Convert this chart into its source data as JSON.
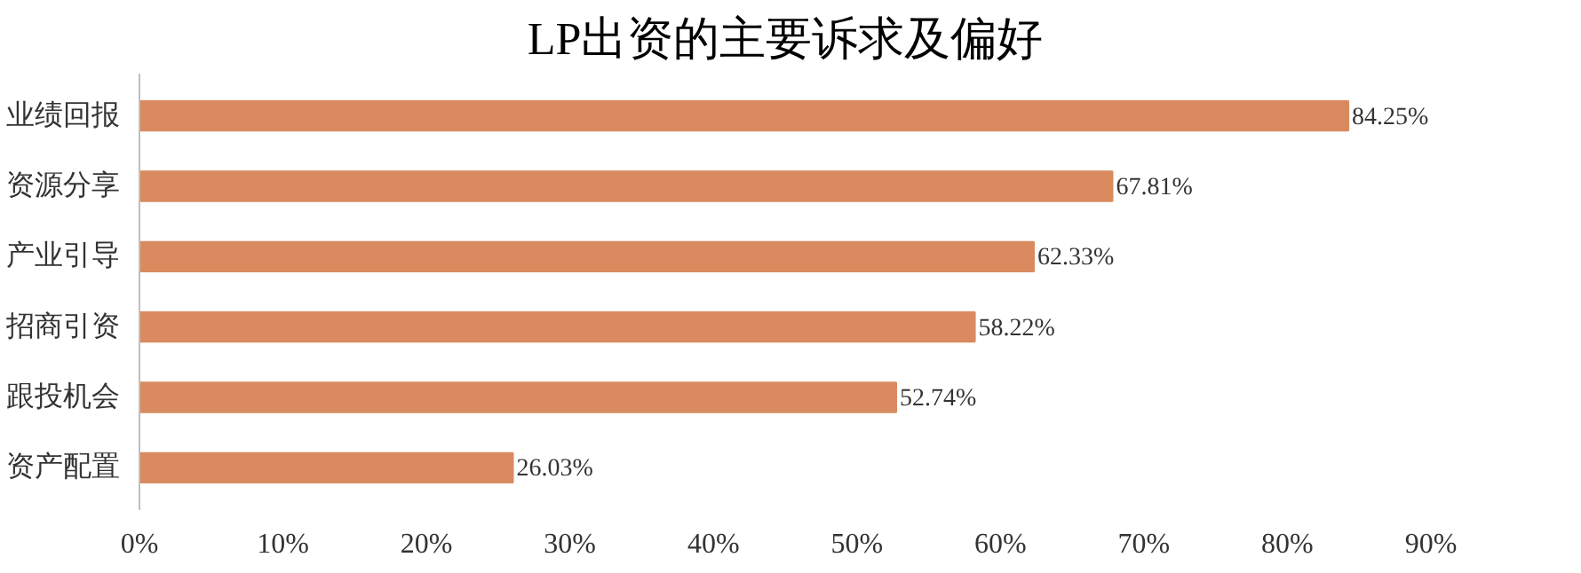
{
  "chart_data": {
    "type": "bar",
    "orientation": "horizontal",
    "title": "LP出资的主要诉求及偏好",
    "categories": [
      "业绩回报",
      "资源分享",
      "产业引导",
      "招商引资",
      "跟投机会",
      "资产配置"
    ],
    "values": [
      84.25,
      67.81,
      62.33,
      58.22,
      52.74,
      26.03
    ],
    "value_labels": [
      "84.25%",
      "67.81%",
      "62.33%",
      "58.22%",
      "52.74%",
      "26.03%"
    ],
    "color": "#d98b5f",
    "xlim": [
      0,
      90
    ],
    "xticks": [
      {
        "value": 0,
        "label": "0%"
      },
      {
        "value": 10,
        "label": "10%"
      },
      {
        "value": 20,
        "label": "20%"
      },
      {
        "value": 30,
        "label": "30%"
      },
      {
        "value": 40,
        "label": "40%"
      },
      {
        "value": 50,
        "label": "50%"
      },
      {
        "value": 60,
        "label": "60%"
      },
      {
        "value": 70,
        "label": "70%"
      },
      {
        "value": 80,
        "label": "80%"
      },
      {
        "value": 90,
        "label": "90%"
      }
    ],
    "grid": false
  }
}
